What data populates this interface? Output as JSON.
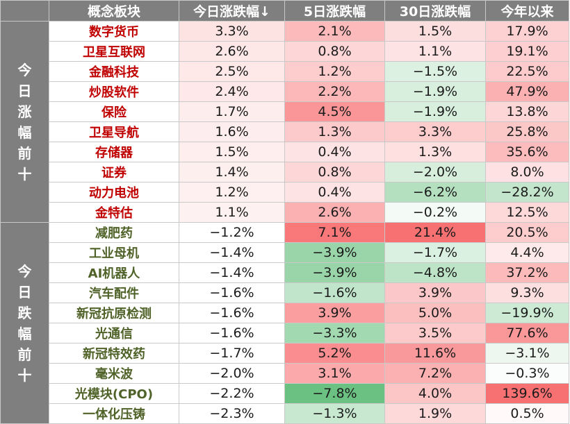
{
  "colors": {
    "header_bg": "#7f7f7f",
    "gainer_name": "#c00000",
    "loser_name": "#4f6228",
    "positive": "#f8696b",
    "negative": "#63be7b"
  },
  "headers": {
    "group": "",
    "name": "概念板块",
    "today": "今日涨跌幅↓",
    "d5": "5日涨跌幅",
    "d30": "30日涨跌幅",
    "ytd": "今年以来"
  },
  "groups": [
    {
      "label": [
        "今",
        "日",
        "涨",
        "幅",
        "前",
        "十"
      ],
      "type": "up",
      "rows": [
        {
          "name": "数字货币",
          "today": "3.3%",
          "d5": "2.1%",
          "d30": "1.5%",
          "ytd": "17.9%"
        },
        {
          "name": "卫星互联网",
          "today": "2.6%",
          "d5": "0.8%",
          "d30": "1.1%",
          "ytd": "19.1%"
        },
        {
          "name": "金融科技",
          "today": "2.5%",
          "d5": "1.2%",
          "d30": "−1.5%",
          "ytd": "22.5%"
        },
        {
          "name": "炒股软件",
          "today": "2.4%",
          "d5": "2.2%",
          "d30": "−1.9%",
          "ytd": "47.9%"
        },
        {
          "name": "保险",
          "today": "1.7%",
          "d5": "4.5%",
          "d30": "−1.9%",
          "ytd": "13.8%"
        },
        {
          "name": "卫星导航",
          "today": "1.6%",
          "d5": "1.3%",
          "d30": "3.3%",
          "ytd": "25.8%"
        },
        {
          "name": "存储器",
          "today": "1.5%",
          "d5": "0.4%",
          "d30": "1.3%",
          "ytd": "35.6%"
        },
        {
          "name": "证券",
          "today": "1.4%",
          "d5": "0.8%",
          "d30": "−2.0%",
          "ytd": "8.0%"
        },
        {
          "name": "动力电池",
          "today": "1.2%",
          "d5": "0.4%",
          "d30": "−6.2%",
          "ytd": "−28.2%"
        },
        {
          "name": "金特估",
          "today": "1.1%",
          "d5": "2.6%",
          "d30": "−0.2%",
          "ytd": "12.5%"
        }
      ]
    },
    {
      "label": [
        "今",
        "日",
        "跌",
        "幅",
        "前",
        "十"
      ],
      "type": "down",
      "rows": [
        {
          "name": "减肥药",
          "today": "−1.2%",
          "d5": "7.1%",
          "d30": "21.4%",
          "ytd": "20.5%"
        },
        {
          "name": "工业母机",
          "today": "−1.4%",
          "d5": "−3.9%",
          "d30": "−1.7%",
          "ytd": "4.4%"
        },
        {
          "name": "AI机器人",
          "today": "−1.4%",
          "d5": "−3.9%",
          "d30": "−4.8%",
          "ytd": "37.2%"
        },
        {
          "name": "汽车配件",
          "today": "−1.6%",
          "d5": "−1.6%",
          "d30": "3.9%",
          "ytd": "9.3%"
        },
        {
          "name": "新冠抗原检测",
          "today": "−1.6%",
          "d5": "3.9%",
          "d30": "5.0%",
          "ytd": "−19.9%"
        },
        {
          "name": "光通信",
          "today": "−1.6%",
          "d5": "−3.3%",
          "d30": "3.5%",
          "ytd": "77.6%"
        },
        {
          "name": "新冠特效药",
          "today": "−1.7%",
          "d5": "5.2%",
          "d30": "11.6%",
          "ytd": "−3.1%"
        },
        {
          "name": "毫米波",
          "today": "−2.0%",
          "d5": "3.1%",
          "d30": "7.2%",
          "ytd": "−0.3%"
        },
        {
          "name": "光模块(CPO)",
          "today": "−2.2%",
          "d5": "−7.8%",
          "d30": "4.0%",
          "ytd": "139.6%"
        },
        {
          "name": "一体化压铸",
          "today": "−2.3%",
          "d5": "−1.3%",
          "d30": "1.9%",
          "ytd": "0.5%"
        }
      ]
    }
  ]
}
